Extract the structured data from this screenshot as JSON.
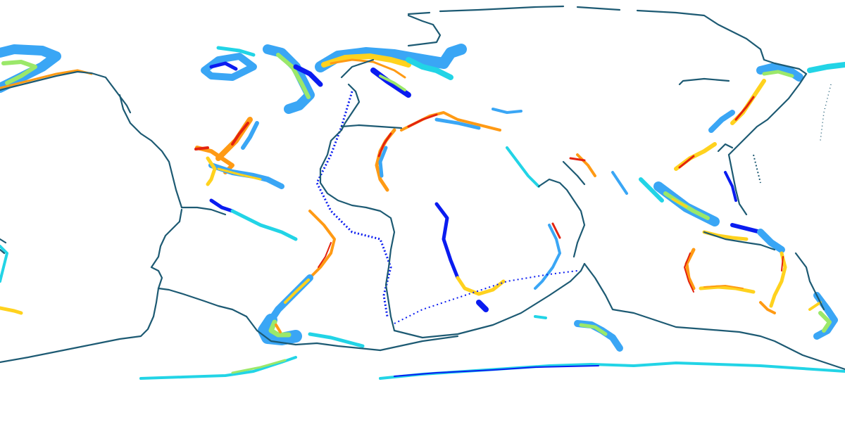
{
  "map": {
    "projection": "equirectangular",
    "coverage": "global",
    "boundary_color": "#1d5a73",
    "palette": {
      "deep_blue": "#0a1cf0",
      "light_blue": "#3aa6f5",
      "cyan": "#22d4e6",
      "green": "#9be86a",
      "yellow": "#ffd21e",
      "orange": "#ff9a14",
      "red": "#e3230f"
    },
    "legend": null
  }
}
